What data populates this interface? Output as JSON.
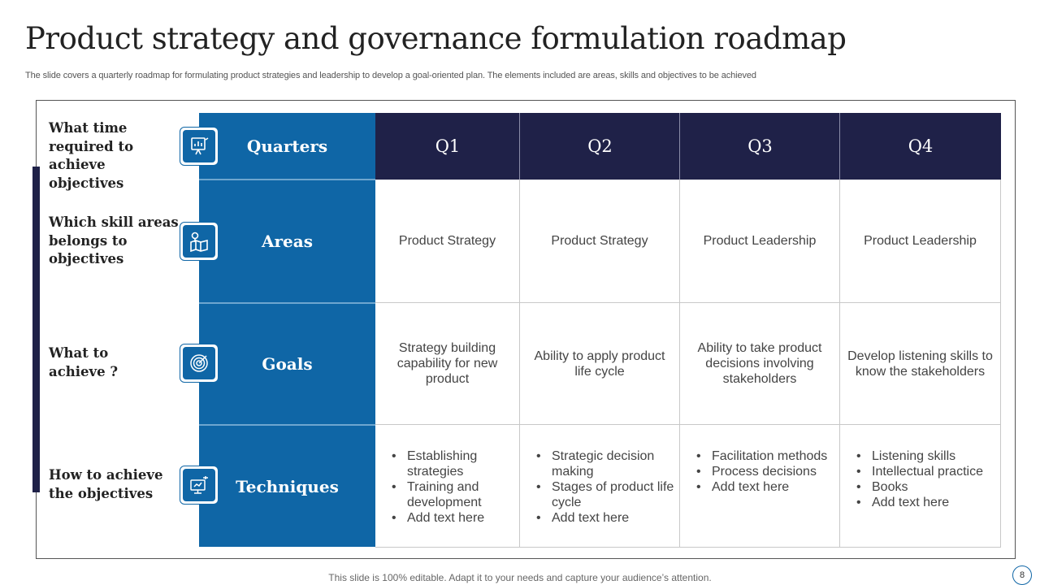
{
  "slide": {
    "title": "Product strategy and governance formulation roadmap",
    "subtitle": "The slide covers a quarterly roadmap for formulating product strategies and leadership to develop a goal-oriented plan. The elements included are areas, skills and objectives to be achieved",
    "footer": "This slide is 100% editable. Adapt it to your needs and capture your audience’s attention.",
    "page_number": "8"
  },
  "questions": [
    "What time required to achieve objectives",
    "Which skill areas belongs to objectives",
    "What to achieve ?",
    "How to achieve the objectives"
  ],
  "row_heads": [
    "Quarters",
    "Areas",
    "Goals",
    "Techniques"
  ],
  "quarters": [
    "Q1",
    "Q2",
    "Q3",
    "Q4"
  ],
  "areas": [
    "Product Strategy",
    "Product Strategy",
    "Product Leadership",
    "Product Leadership"
  ],
  "goals": [
    "Strategy building capability for new product",
    "Ability to apply product life cycle",
    "Ability to take product decisions involving stakeholders",
    "Develop listening skills to know the stakeholders"
  ],
  "techniques": [
    [
      "Establishing strategies",
      "Training and development",
      "Add text here"
    ],
    [
      "Strategic decision making",
      "Stages of product life cycle",
      "Add text here"
    ],
    [
      "Facilitation methods",
      "Process decisions",
      "Add text here"
    ],
    [
      "Listening skills",
      "Intellectual  practice",
      "Books",
      "Add text here"
    ]
  ],
  "icons": [
    "presentation-chart-icon",
    "map-pin-icon",
    "target-icon",
    "monitor-idea-icon"
  ],
  "colors": {
    "navy": "#1f2148",
    "blue": "#0f66a6"
  }
}
